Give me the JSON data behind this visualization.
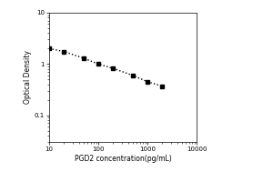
{
  "x_values": [
    10,
    20,
    50,
    100,
    200,
    500,
    1000,
    2000
  ],
  "y_values": [
    2.0,
    1.75,
    1.3,
    1.0,
    0.82,
    0.6,
    0.45,
    0.37
  ],
  "xlabel": "PGD2 concentration(pg/mL)",
  "ylabel": "Optical Density",
  "xlim": [
    10,
    10000
  ],
  "ylim": [
    0.03,
    10
  ],
  "marker": "s",
  "marker_color": "black",
  "marker_size": 3,
  "line_style": "dotted",
  "line_color": "black",
  "line_width": 1.0,
  "x_ticks": [
    10,
    100,
    1000,
    10000
  ],
  "x_tick_labels": [
    "10",
    "100",
    "1000",
    "10000"
  ],
  "y_ticks": [
    0.1,
    1,
    10
  ],
  "y_tick_labels": [
    "0.1",
    "1",
    "10"
  ],
  "background_color": "#ffffff"
}
